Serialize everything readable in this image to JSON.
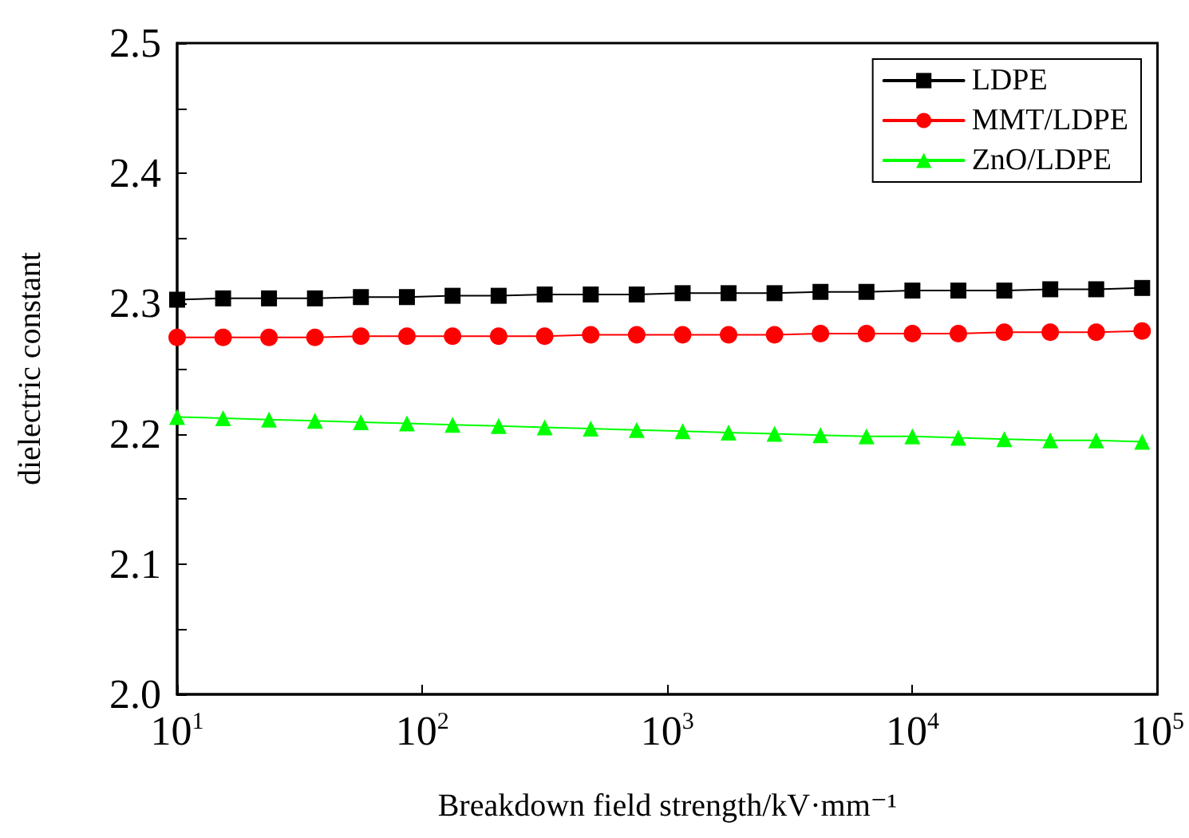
{
  "chart_data": {
    "type": "line",
    "xlabel": "Breakdown field strength/kV·mm⁻¹",
    "ylabel": "dielectric constant",
    "x": [
      10,
      15.4,
      23.7,
      36.5,
      56.2,
      86.6,
      133,
      205,
      316,
      487,
      750,
      1155,
      1778,
      2738,
      4217,
      6494,
      10000,
      15399,
      23714,
      36517,
      56234,
      86596
    ],
    "series": [
      {
        "name": "LDPE",
        "color": "#000000",
        "marker": "square",
        "values": [
          2.303,
          2.304,
          2.304,
          2.304,
          2.305,
          2.305,
          2.306,
          2.306,
          2.307,
          2.307,
          2.307,
          2.308,
          2.308,
          2.308,
          2.309,
          2.309,
          2.31,
          2.31,
          2.31,
          2.311,
          2.311,
          2.312
        ]
      },
      {
        "name": "MMT/LDPE",
        "color": "#ff0000",
        "marker": "circle",
        "values": [
          2.274,
          2.274,
          2.274,
          2.274,
          2.275,
          2.275,
          2.275,
          2.275,
          2.275,
          2.276,
          2.276,
          2.276,
          2.276,
          2.276,
          2.277,
          2.277,
          2.277,
          2.277,
          2.278,
          2.278,
          2.278,
          2.279
        ]
      },
      {
        "name": "ZnO/LDPE",
        "color": "#00ff00",
        "marker": "triangle",
        "values": [
          2.213,
          2.212,
          2.211,
          2.21,
          2.209,
          2.208,
          2.207,
          2.206,
          2.205,
          2.204,
          2.203,
          2.202,
          2.201,
          2.2,
          2.199,
          2.198,
          2.198,
          2.197,
          2.196,
          2.195,
          2.195,
          2.194
        ]
      }
    ],
    "log": "x",
    "xlim": [
      10,
      100000
    ],
    "xticks": [
      {
        "value": 10,
        "label": "10$^{1}$"
      },
      {
        "value": 100,
        "label": "10$^{2}$"
      },
      {
        "value": 1000,
        "label": "10$^{3}$"
      },
      {
        "value": 10000,
        "label": "10$^{4}$"
      },
      {
        "value": 100000,
        "label": "10$^{5}$"
      }
    ],
    "ylim": [
      2.0,
      2.5
    ],
    "yticks": [
      {
        "value": 2.0,
        "label": "2.0"
      },
      {
        "value": 2.05,
        "label": null
      },
      {
        "value": 2.1,
        "label": "2.1"
      },
      {
        "value": 2.15,
        "label": null
      },
      {
        "value": 2.2,
        "label": "2.2"
      },
      {
        "value": 2.25,
        "label": null
      },
      {
        "value": 2.3,
        "label": "2.3"
      },
      {
        "value": 2.35,
        "label": null
      },
      {
        "value": 2.4,
        "label": "2.4"
      },
      {
        "value": 2.45,
        "label": null
      },
      {
        "value": 2.5,
        "label": "2.5"
      }
    ],
    "grid": false,
    "legend": "top right",
    "line_style": "solid"
  }
}
